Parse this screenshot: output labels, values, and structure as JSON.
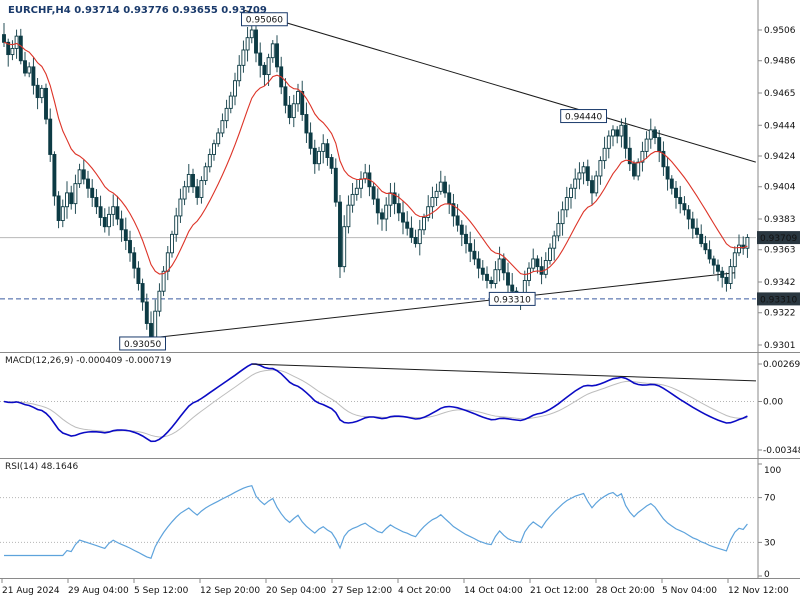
{
  "window": {
    "title": "EURCHF,H4 0.93714 0.93776 0.93655 0.93709",
    "symbol": "EURCHF",
    "timeframe": "H4",
    "ohlc": {
      "open": "0.93714",
      "high": "0.93776",
      "low": "0.93655",
      "close": "0.93709"
    }
  },
  "colors": {
    "background": "#ffffff",
    "candle": "#0d3b44",
    "ma_line": "#dd3428",
    "macd_line": "#0b0bc4",
    "macd_signal": "#bdbdbd",
    "rsi_line": "#5ea3dc",
    "trendline": "#1c1c1c",
    "axis_line": "#8a8a8a",
    "axis_text": "#111111",
    "label_navy": "#1a3a6b",
    "marker_bg": "#2a3740",
    "marker_text": "#ffffff",
    "bid_line": "#b8b8b8",
    "dashed_level": "#3a5ba0",
    "dotted_grid": "#b5b5b5"
  },
  "chart_data": [
    {
      "type": "candlestick",
      "title": "EURCHF,H4",
      "closes": [
        0.9498,
        0.949,
        0.9494,
        0.9502,
        0.9486,
        0.9478,
        0.9482,
        0.947,
        0.9462,
        0.9468,
        0.9448,
        0.9425,
        0.9398,
        0.9382,
        0.9391,
        0.94,
        0.9393,
        0.9406,
        0.9415,
        0.9409,
        0.9403,
        0.9397,
        0.9391,
        0.9384,
        0.9378,
        0.9386,
        0.9391,
        0.9383,
        0.9376,
        0.9369,
        0.9361,
        0.9351,
        0.9341,
        0.9329,
        0.9315,
        0.9306,
        0.9323,
        0.9336,
        0.9349,
        0.9361,
        0.9373,
        0.9385,
        0.9396,
        0.9404,
        0.9412,
        0.9404,
        0.9397,
        0.9408,
        0.9417,
        0.9425,
        0.9432,
        0.9439,
        0.9447,
        0.9455,
        0.9463,
        0.9473,
        0.9483,
        0.9493,
        0.9501,
        0.9506,
        0.9491,
        0.9483,
        0.9477,
        0.9488,
        0.9497,
        0.9482,
        0.9469,
        0.9457,
        0.9449,
        0.9458,
        0.9466,
        0.9451,
        0.9439,
        0.9429,
        0.9419,
        0.9427,
        0.9432,
        0.9423,
        0.9416,
        0.9394,
        0.9352,
        0.9378,
        0.9392,
        0.9399,
        0.9403,
        0.9409,
        0.9413,
        0.9404,
        0.9396,
        0.9387,
        0.9383,
        0.9392,
        0.94,
        0.9393,
        0.9387,
        0.9381,
        0.9377,
        0.9371,
        0.9367,
        0.9376,
        0.9384,
        0.9391,
        0.9397,
        0.9401,
        0.9407,
        0.94,
        0.9393,
        0.9385,
        0.9379,
        0.9373,
        0.9367,
        0.9362,
        0.9357,
        0.9351,
        0.9347,
        0.9343,
        0.9341,
        0.935,
        0.9357,
        0.9348,
        0.934,
        0.9336,
        0.9333,
        0.9331,
        0.9343,
        0.9351,
        0.9357,
        0.9352,
        0.9347,
        0.9356,
        0.9364,
        0.9372,
        0.938,
        0.9389,
        0.9397,
        0.9403,
        0.9409,
        0.9413,
        0.9417,
        0.9408,
        0.94,
        0.9411,
        0.9421,
        0.9429,
        0.9437,
        0.9441,
        0.9437,
        0.9444,
        0.9429,
        0.9419,
        0.9411,
        0.942,
        0.9427,
        0.9435,
        0.9441,
        0.9436,
        0.9427,
        0.9417,
        0.9409,
        0.9403,
        0.9397,
        0.9393,
        0.9389,
        0.9383,
        0.9377,
        0.9373,
        0.9367,
        0.9363,
        0.9357,
        0.9353,
        0.9349,
        0.9345,
        0.9341,
        0.9352,
        0.9361,
        0.9366,
        0.9364,
        0.9371
      ],
      "ma_period": 13,
      "y_ticks": [
        "0.9506",
        "0.9486",
        "0.9465",
        "0.9444",
        "0.9424",
        "0.9404",
        "0.9383",
        "0.9363",
        "0.9342",
        "0.9322",
        "0.9301"
      ],
      "x_ticks": [
        "21 Aug 2024",
        "29 Aug 04:00",
        "5 Sep 12:00",
        "12 Sep 20:00",
        "20 Sep 04:00",
        "27 Sep 12:00",
        "4 Oct 20:00",
        "14 Oct 04:00",
        "21 Oct 12:00",
        "28 Oct 20:00",
        "5 Nov 04:00",
        "12 Nov 12:00"
      ],
      "current_price": 0.93709,
      "current_price_label": "0.93709",
      "level_line": {
        "price": 0.9331,
        "label": "0.93310"
      },
      "annotations": [
        {
          "text": "0.95060",
          "index": 62,
          "price": 0.9513
        },
        {
          "text": "0.94440",
          "index": 138,
          "price": 0.945
        },
        {
          "text": "0.93310",
          "index": 121,
          "price": 0.9331
        },
        {
          "text": "0.93050",
          "index": 33,
          "price": 0.9302
        }
      ],
      "trendlines": [
        {
          "name": "descending-resistance",
          "p1": {
            "index": 57,
            "price": 0.9519
          },
          "p2": {
            "index": 179,
            "price": 0.942
          }
        },
        {
          "name": "ascending-support",
          "p1": {
            "index": 30,
            "price": 0.9304
          },
          "p2": {
            "index": 174,
            "price": 0.9348
          }
        }
      ]
    },
    {
      "type": "line",
      "name": "MACD",
      "label": "MACD(12,26,9) -0.000409 -0.000719",
      "params": {
        "fast": 12,
        "slow": 26,
        "signal": 9
      },
      "current_values": {
        "macd": -0.000409,
        "signal": -0.000719
      },
      "derived_from": "chart_data.0.closes",
      "y_ticks": [
        "0.00269",
        "0.00",
        "-0.00348"
      ],
      "ylim": [
        -0.00348,
        0.00269
      ]
    },
    {
      "type": "line",
      "name": "RSI",
      "label": "RSI(14) 48.1646",
      "period": 14,
      "current_value": 48.1646,
      "y_ticks": [
        "100",
        "70",
        "30",
        "0"
      ],
      "levels": [
        70,
        30
      ],
      "ylim": [
        0,
        100
      ]
    }
  ]
}
